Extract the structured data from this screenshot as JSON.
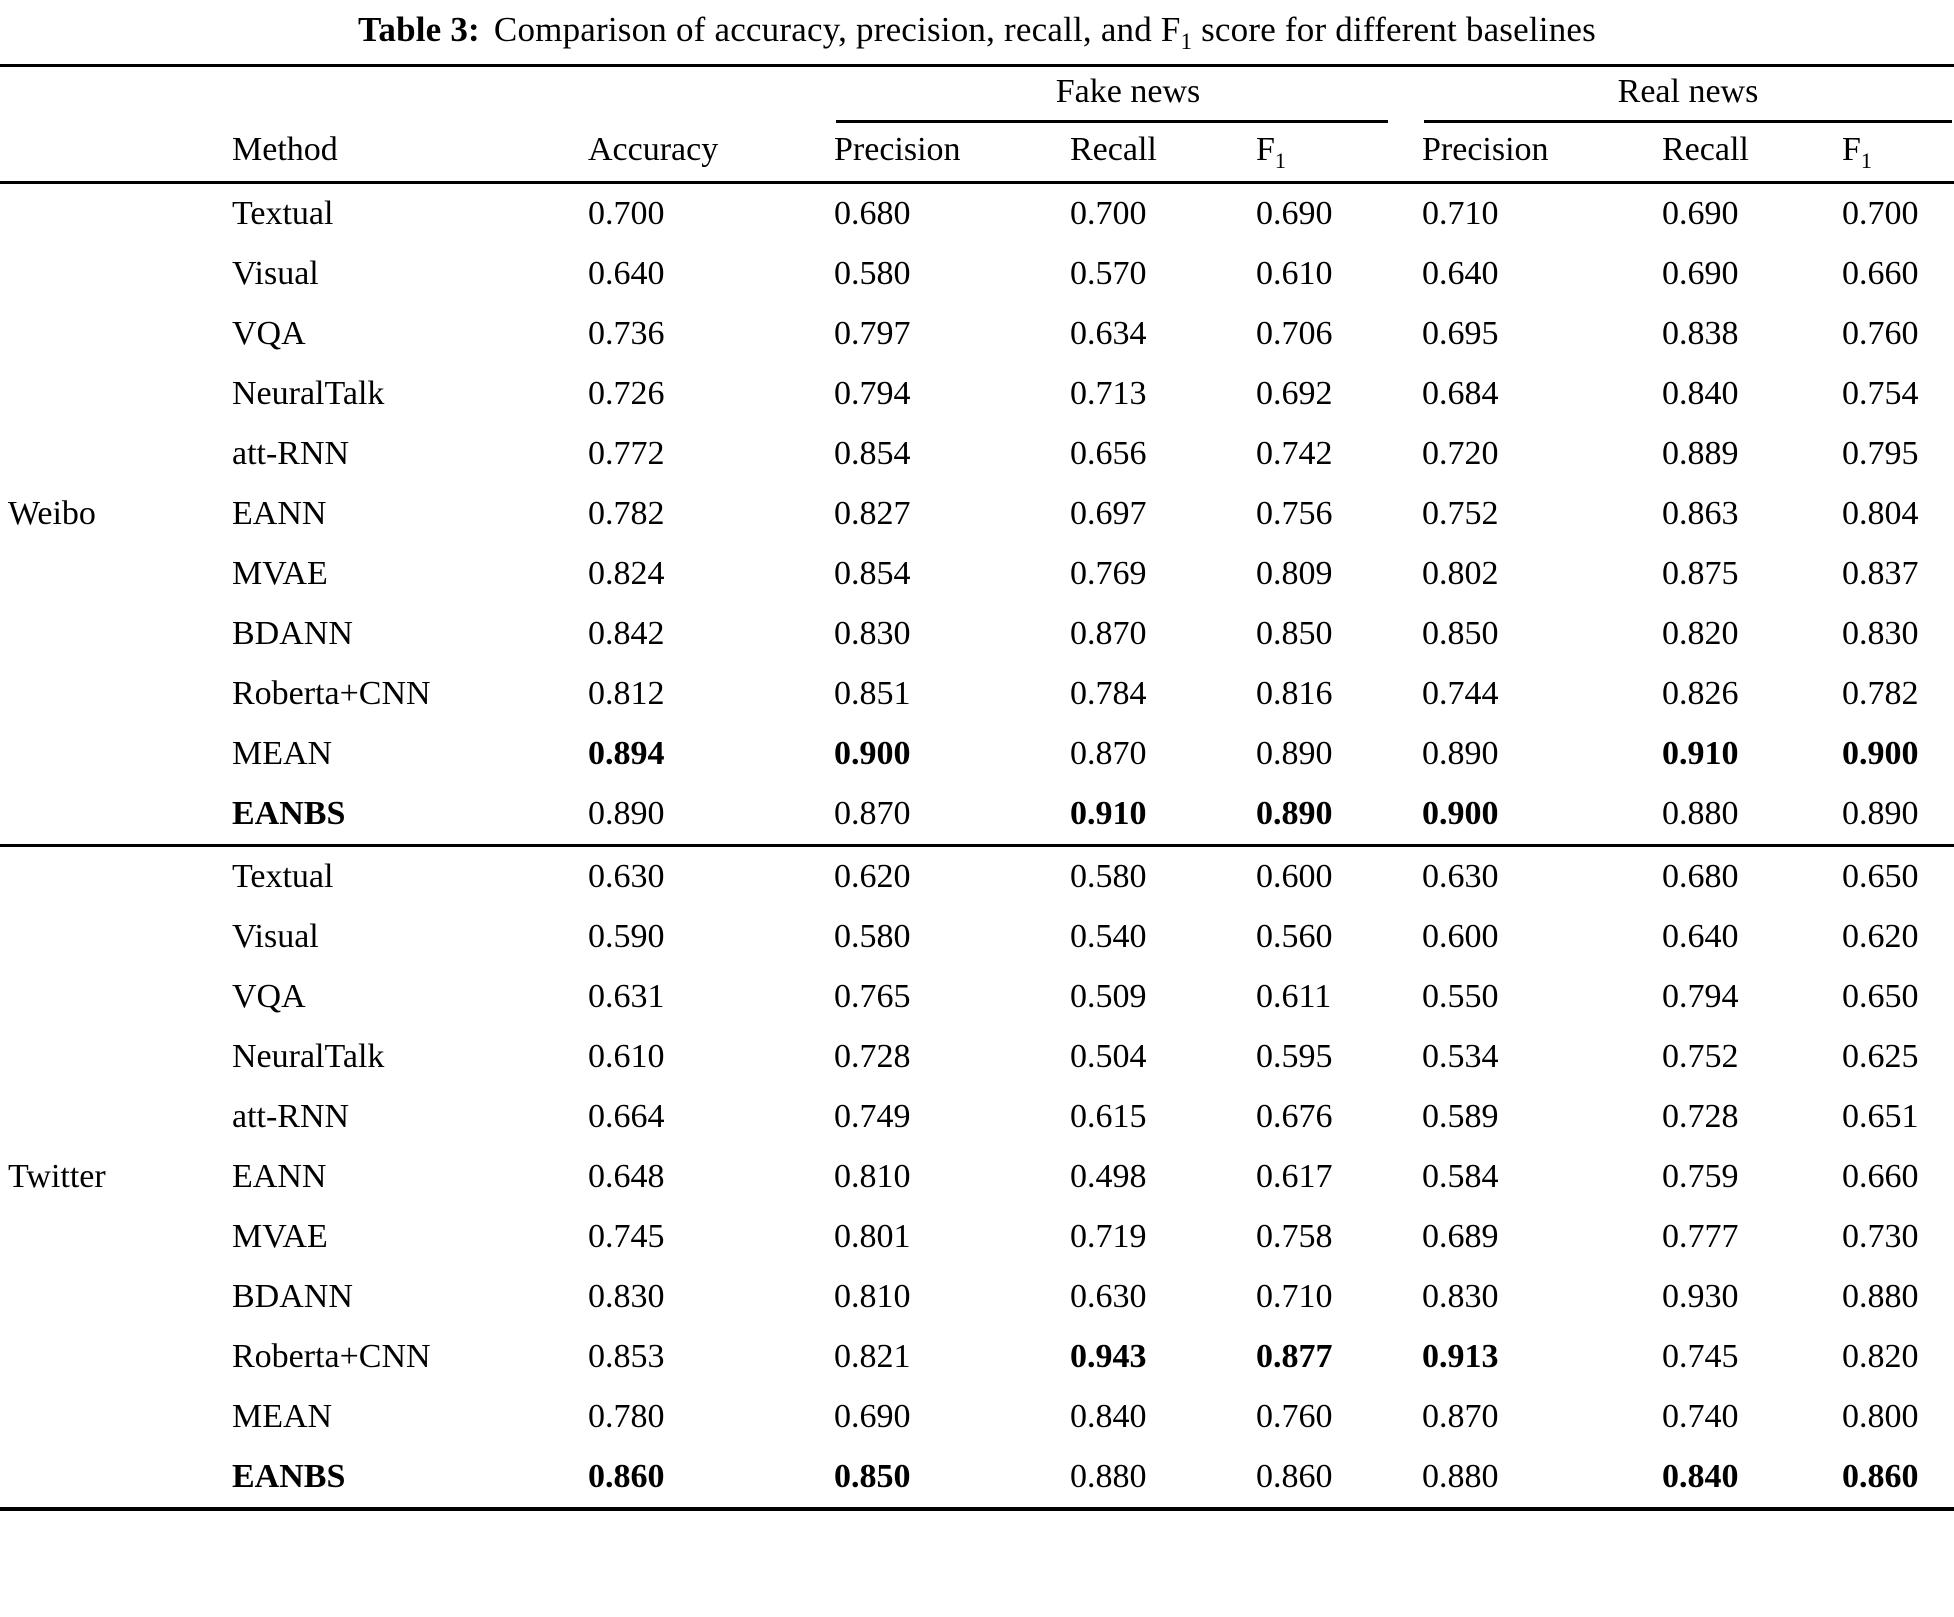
{
  "title": {
    "label": "Table 3:",
    "before_sub": "Comparison of accuracy, precision, recall, and F",
    "sub": "1",
    "after_sub": " score for different baselines"
  },
  "table": {
    "group_headers": [
      {
        "label": "Fake news"
      },
      {
        "label": "Real news"
      }
    ],
    "columns": [
      "Method",
      "Accuracy",
      "Precision",
      "Recall",
      "F1",
      "Precision",
      "Recall",
      "F1"
    ],
    "groups": [
      {
        "name": "Weibo",
        "rows": [
          {
            "method": "Textual",
            "method_bold": false,
            "values": [
              "0.700",
              "0.680",
              "0.700",
              "0.690",
              "0.710",
              "0.690",
              "0.700"
            ],
            "bold": [
              false,
              false,
              false,
              false,
              false,
              false,
              false
            ]
          },
          {
            "method": "Visual",
            "method_bold": false,
            "values": [
              "0.640",
              "0.580",
              "0.570",
              "0.610",
              "0.640",
              "0.690",
              "0.660"
            ],
            "bold": [
              false,
              false,
              false,
              false,
              false,
              false,
              false
            ]
          },
          {
            "method": "VQA",
            "method_bold": false,
            "values": [
              "0.736",
              "0.797",
              "0.634",
              "0.706",
              "0.695",
              "0.838",
              "0.760"
            ],
            "bold": [
              false,
              false,
              false,
              false,
              false,
              false,
              false
            ]
          },
          {
            "method": "NeuralTalk",
            "method_bold": false,
            "values": [
              "0.726",
              "0.794",
              "0.713",
              "0.692",
              "0.684",
              "0.840",
              "0.754"
            ],
            "bold": [
              false,
              false,
              false,
              false,
              false,
              false,
              false
            ]
          },
          {
            "method": "att-RNN",
            "method_bold": false,
            "values": [
              "0.772",
              "0.854",
              "0.656",
              "0.742",
              "0.720",
              "0.889",
              "0.795"
            ],
            "bold": [
              false,
              false,
              false,
              false,
              false,
              false,
              false
            ]
          },
          {
            "method": "EANN",
            "method_bold": false,
            "values": [
              "0.782",
              "0.827",
              "0.697",
              "0.756",
              "0.752",
              "0.863",
              "0.804"
            ],
            "bold": [
              false,
              false,
              false,
              false,
              false,
              false,
              false
            ]
          },
          {
            "method": "MVAE",
            "method_bold": false,
            "values": [
              "0.824",
              "0.854",
              "0.769",
              "0.809",
              "0.802",
              "0.875",
              "0.837"
            ],
            "bold": [
              false,
              false,
              false,
              false,
              false,
              false,
              false
            ]
          },
          {
            "method": "BDANN",
            "method_bold": false,
            "values": [
              "0.842",
              "0.830",
              "0.870",
              "0.850",
              "0.850",
              "0.820",
              "0.830"
            ],
            "bold": [
              false,
              false,
              false,
              false,
              false,
              false,
              false
            ]
          },
          {
            "method": "Roberta+CNN",
            "method_bold": false,
            "values": [
              "0.812",
              "0.851",
              "0.784",
              "0.816",
              "0.744",
              "0.826",
              "0.782"
            ],
            "bold": [
              false,
              false,
              false,
              false,
              false,
              false,
              false
            ]
          },
          {
            "method": "MEAN",
            "method_bold": false,
            "values": [
              "0.894",
              "0.900",
              "0.870",
              "0.890",
              "0.890",
              "0.910",
              "0.900"
            ],
            "bold": [
              true,
              true,
              false,
              false,
              false,
              true,
              true
            ]
          },
          {
            "method": "EANBS",
            "method_bold": true,
            "values": [
              "0.890",
              "0.870",
              "0.910",
              "0.890",
              "0.900",
              "0.880",
              "0.890"
            ],
            "bold": [
              false,
              false,
              true,
              true,
              true,
              false,
              false
            ]
          }
        ]
      },
      {
        "name": "Twitter",
        "rows": [
          {
            "method": "Textual",
            "method_bold": false,
            "values": [
              "0.630",
              "0.620",
              "0.580",
              "0.600",
              "0.630",
              "0.680",
              "0.650"
            ],
            "bold": [
              false,
              false,
              false,
              false,
              false,
              false,
              false
            ]
          },
          {
            "method": "Visual",
            "method_bold": false,
            "values": [
              "0.590",
              "0.580",
              "0.540",
              "0.560",
              "0.600",
              "0.640",
              "0.620"
            ],
            "bold": [
              false,
              false,
              false,
              false,
              false,
              false,
              false
            ]
          },
          {
            "method": "VQA",
            "method_bold": false,
            "values": [
              "0.631",
              "0.765",
              "0.509",
              "0.611",
              "0.550",
              "0.794",
              "0.650"
            ],
            "bold": [
              false,
              false,
              false,
              false,
              false,
              false,
              false
            ]
          },
          {
            "method": "NeuralTalk",
            "method_bold": false,
            "values": [
              "0.610",
              "0.728",
              "0.504",
              "0.595",
              "0.534",
              "0.752",
              "0.625"
            ],
            "bold": [
              false,
              false,
              false,
              false,
              false,
              false,
              false
            ]
          },
          {
            "method": "att-RNN",
            "method_bold": false,
            "values": [
              "0.664",
              "0.749",
              "0.615",
              "0.676",
              "0.589",
              "0.728",
              "0.651"
            ],
            "bold": [
              false,
              false,
              false,
              false,
              false,
              false,
              false
            ]
          },
          {
            "method": "EANN",
            "method_bold": false,
            "values": [
              "0.648",
              "0.810",
              "0.498",
              "0.617",
              "0.584",
              "0.759",
              "0.660"
            ],
            "bold": [
              false,
              false,
              false,
              false,
              false,
              false,
              false
            ]
          },
          {
            "method": "MVAE",
            "method_bold": false,
            "values": [
              "0.745",
              "0.801",
              "0.719",
              "0.758",
              "0.689",
              "0.777",
              "0.730"
            ],
            "bold": [
              false,
              false,
              false,
              false,
              false,
              false,
              false
            ]
          },
          {
            "method": "BDANN",
            "method_bold": false,
            "values": [
              "0.830",
              "0.810",
              "0.630",
              "0.710",
              "0.830",
              "0.930",
              "0.880"
            ],
            "bold": [
              false,
              false,
              false,
              false,
              false,
              false,
              false
            ]
          },
          {
            "method": "Roberta+CNN",
            "method_bold": false,
            "values": [
              "0.853",
              "0.821",
              "0.943",
              "0.877",
              "0.913",
              "0.745",
              "0.820"
            ],
            "bold": [
              false,
              false,
              true,
              true,
              true,
              false,
              false
            ]
          },
          {
            "method": "MEAN",
            "method_bold": false,
            "values": [
              "0.780",
              "0.690",
              "0.840",
              "0.760",
              "0.870",
              "0.740",
              "0.800"
            ],
            "bold": [
              false,
              false,
              false,
              false,
              false,
              false,
              false
            ]
          },
          {
            "method": "EANBS",
            "method_bold": true,
            "values": [
              "0.860",
              "0.850",
              "0.880",
              "0.860",
              "0.880",
              "0.840",
              "0.860"
            ],
            "bold": [
              true,
              true,
              false,
              false,
              false,
              true,
              true
            ]
          }
        ]
      }
    ]
  }
}
